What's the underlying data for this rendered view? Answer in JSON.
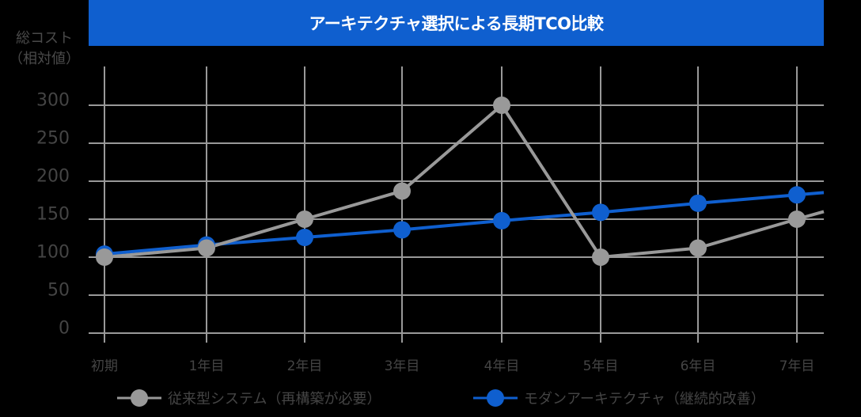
{
  "title": "アーキテクチャ選択による長期TCO比較",
  "colors": {
    "title_bg": "#0f5fcf",
    "legacy": "#999999",
    "modern": "#0f5fcf",
    "grid": "#999999",
    "text": "#444444"
  },
  "chart_data": {
    "type": "line",
    "title": "アーキテクチャ選択による長期TCO比較",
    "xlabel": "",
    "ylabel": "総コスト（相対値）",
    "ylabel_lines": [
      "総コスト",
      "（相対値）"
    ],
    "categories": [
      "初期",
      "1年目",
      "2年目",
      "3年目",
      "4年目",
      "5年目",
      "6年目",
      "7年目"
    ],
    "yticks": [
      0,
      50,
      100,
      150,
      200,
      250,
      300
    ],
    "ylim": [
      0,
      300
    ],
    "grid": true,
    "legend_position": "bottom",
    "series": [
      {
        "name": "従来型システム（再構築が必要）",
        "color": "#999999",
        "values": [
          100,
          112,
          150,
          187,
          300,
          100,
          112,
          150
        ],
        "trail_end": 160
      },
      {
        "name": "モダンアーキテクチャ（継続的改善）",
        "color": "#0f5fcf",
        "values": [
          104,
          116,
          126,
          136,
          148,
          159,
          171,
          182
        ],
        "trail_end": 185
      }
    ]
  }
}
